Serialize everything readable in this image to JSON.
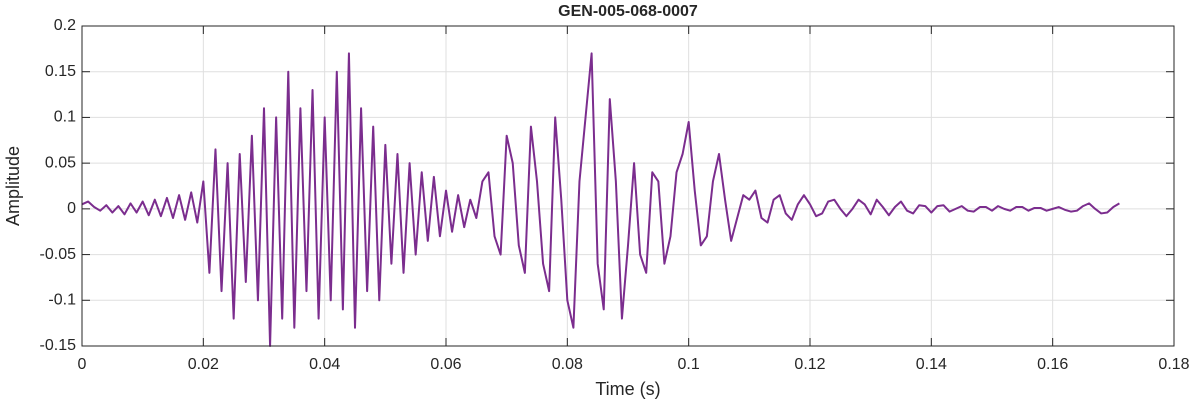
{
  "chart_data": {
    "type": "line",
    "title": "GEN-005-068-0007",
    "x_label": "Time (s)",
    "y_label": "Amplitude",
    "color": "#7b2d8e",
    "grid": true,
    "xlim": [
      0,
      0.18
    ],
    "ylim": [
      -0.15,
      0.2
    ],
    "xticks": [
      0,
      0.02,
      0.04,
      0.06,
      0.08,
      0.1,
      0.12,
      0.14,
      0.16,
      0.18
    ],
    "yticks": [
      -0.15,
      -0.1,
      -0.05,
      0,
      0.05,
      0.1,
      0.15,
      0.2
    ],
    "x": [
      0,
      0.001,
      0.002,
      0.003,
      0.004,
      0.005,
      0.006,
      0.007,
      0.008,
      0.009,
      0.01,
      0.011,
      0.012,
      0.013,
      0.014,
      0.015,
      0.016,
      0.017,
      0.018,
      0.019,
      0.02,
      0.021,
      0.022,
      0.023,
      0.024,
      0.025,
      0.026,
      0.027,
      0.028,
      0.029,
      0.03,
      0.031,
      0.032,
      0.033,
      0.034,
      0.035,
      0.036,
      0.037,
      0.038,
      0.039,
      0.04,
      0.041,
      0.042,
      0.043,
      0.044,
      0.045,
      0.046,
      0.047,
      0.048,
      0.049,
      0.05,
      0.051,
      0.052,
      0.053,
      0.054,
      0.055,
      0.056,
      0.057,
      0.058,
      0.059,
      0.06,
      0.061,
      0.062,
      0.063,
      0.064,
      0.065,
      0.066,
      0.067,
      0.068,
      0.069,
      0.07,
      0.071,
      0.072,
      0.073,
      0.074,
      0.075,
      0.076,
      0.077,
      0.078,
      0.079,
      0.08,
      0.081,
      0.082,
      0.083,
      0.084,
      0.085,
      0.086,
      0.087,
      0.088,
      0.089,
      0.09,
      0.091,
      0.092,
      0.093,
      0.094,
      0.095,
      0.096,
      0.097,
      0.098,
      0.099,
      0.1,
      0.101,
      0.102,
      0.103,
      0.104,
      0.105,
      0.106,
      0.107,
      0.108,
      0.109,
      0.11,
      0.111,
      0.112,
      0.113,
      0.114,
      0.115,
      0.116,
      0.117,
      0.118,
      0.119,
      0.12,
      0.121,
      0.122,
      0.123,
      0.124,
      0.125,
      0.126,
      0.127,
      0.128,
      0.129,
      0.13,
      0.131,
      0.132,
      0.133,
      0.134,
      0.135,
      0.136,
      0.137,
      0.138,
      0.139,
      0.14,
      0.141,
      0.142,
      0.143,
      0.144,
      0.145,
      0.146,
      0.147,
      0.148,
      0.149,
      0.15,
      0.151,
      0.152,
      0.153,
      0.154,
      0.155,
      0.156,
      0.157,
      0.158,
      0.159,
      0.16,
      0.161,
      0.162,
      0.163,
      0.164,
      0.165,
      0.166,
      0.167,
      0.168,
      0.169,
      0.17,
      0.171
    ],
    "values": [
      0.005,
      0.008,
      0.002,
      -0.002,
      0.004,
      -0.004,
      0.003,
      -0.006,
      0.006,
      -0.004,
      0.008,
      -0.007,
      0.01,
      -0.008,
      0.012,
      -0.01,
      0.015,
      -0.012,
      0.018,
      -0.015,
      0.03,
      -0.07,
      0.065,
      -0.09,
      0.05,
      -0.12,
      0.06,
      -0.08,
      0.08,
      -0.1,
      0.11,
      -0.15,
      0.1,
      -0.12,
      0.15,
      -0.13,
      0.11,
      -0.09,
      0.13,
      -0.12,
      0.1,
      -0.1,
      0.15,
      -0.11,
      0.17,
      -0.13,
      0.11,
      -0.09,
      0.09,
      -0.1,
      0.07,
      -0.06,
      0.06,
      -0.07,
      0.05,
      -0.05,
      0.04,
      -0.035,
      0.035,
      -0.03,
      0.02,
      -0.025,
      0.015,
      -0.02,
      0.01,
      -0.01,
      0.03,
      0.04,
      -0.03,
      -0.05,
      0.08,
      0.05,
      -0.04,
      -0.07,
      0.09,
      0.03,
      -0.06,
      -0.09,
      0.1,
      0.01,
      -0.1,
      -0.13,
      0.03,
      0.1,
      0.17,
      -0.06,
      -0.11,
      0.12,
      0.03,
      -0.12,
      -0.04,
      0.05,
      -0.05,
      -0.07,
      0.04,
      0.03,
      -0.06,
      -0.03,
      0.04,
      0.06,
      0.095,
      0.02,
      -0.04,
      -0.03,
      0.03,
      0.06,
      0.01,
      -0.035,
      -0.01,
      0.015,
      0.01,
      0.02,
      -0.01,
      -0.015,
      0.01,
      0.015,
      -0.005,
      -0.012,
      0.005,
      0.015,
      0.005,
      -0.008,
      -0.005,
      0.008,
      0.01,
      0,
      -0.008,
      0,
      0.01,
      0.005,
      -0.006,
      0.01,
      0.002,
      -0.007,
      0.002,
      0.008,
      -0.002,
      -0.005,
      0.004,
      0.003,
      -0.004,
      0.003,
      0.004,
      -0.003,
      0,
      0.003,
      -0.002,
      -0.003,
      0.002,
      0.002,
      -0.002,
      0.003,
      0,
      -0.002,
      0.002,
      0.002,
      -0.002,
      0.001,
      0.001,
      -0.002,
      0,
      0.002,
      -0.001,
      -0.003,
      -0.002,
      0.003,
      0.006,
      0,
      -0.005,
      -0.004,
      0.002,
      0.006
    ]
  }
}
